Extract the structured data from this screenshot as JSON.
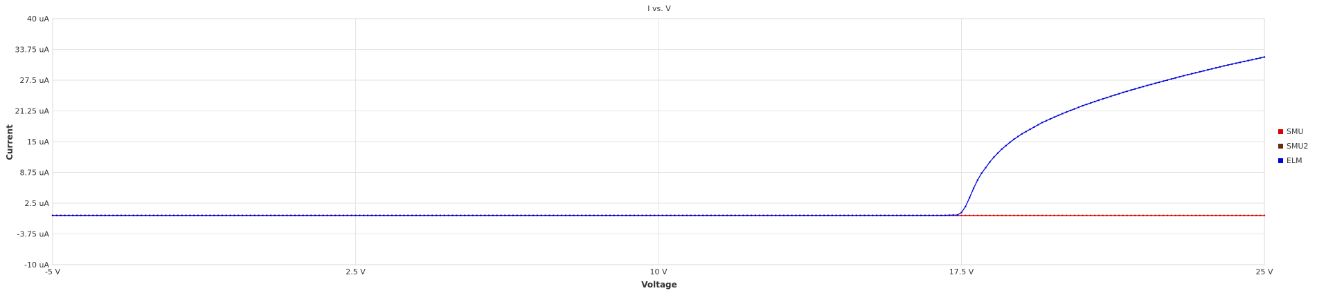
{
  "chart_data": {
    "type": "line",
    "title": "I vs. V",
    "xlabel": "Voltage",
    "ylabel": "Current",
    "x_unit": "V",
    "y_unit": "uA",
    "xlim": [
      -5,
      25
    ],
    "ylim": [
      -10,
      40
    ],
    "x_ticks": [
      -5,
      2.5,
      10,
      17.5,
      25
    ],
    "x_tick_labels": [
      "-5 V",
      "2.5 V",
      "10 V",
      "17.5 V",
      "25 V"
    ],
    "y_ticks": [
      -10,
      -3.75,
      2.5,
      8.75,
      15,
      21.25,
      27.5,
      33.75,
      40
    ],
    "y_tick_labels": [
      "-10 uA",
      "-3.75 uA",
      "2.5 uA",
      "8.75 uA",
      "15 uA",
      "21.25 uA",
      "27.5 uA",
      "33.75 uA",
      "40 uA"
    ],
    "grid": true,
    "legend_position": "right",
    "series": [
      {
        "name": "SMU",
        "color": "#dd0000",
        "x": [
          -5,
          25
        ],
        "y": [
          0,
          0
        ],
        "step": 0.1
      },
      {
        "name": "SMU2",
        "color": "#6b2a10",
        "x": [],
        "y": []
      },
      {
        "name": "ELM",
        "color": "#0000dd",
        "x": [
          -5,
          17.0,
          17.4,
          17.5,
          17.6,
          17.7,
          17.8,
          17.9,
          18.0,
          18.25,
          18.5,
          18.75,
          19.0,
          19.5,
          20.0,
          20.5,
          21.0,
          21.5,
          22.0,
          22.5,
          23.0,
          23.5,
          24.0,
          24.5,
          25.0
        ],
        "y": [
          0,
          0,
          0.1,
          0.6,
          1.8,
          3.6,
          5.5,
          7.2,
          8.6,
          11.4,
          13.5,
          15.2,
          16.6,
          18.9,
          20.7,
          22.3,
          23.7,
          25.0,
          26.2,
          27.3,
          28.4,
          29.4,
          30.4,
          31.3,
          32.2
        ],
        "step": 0.1,
        "x_end": 17.4
      }
    ]
  }
}
